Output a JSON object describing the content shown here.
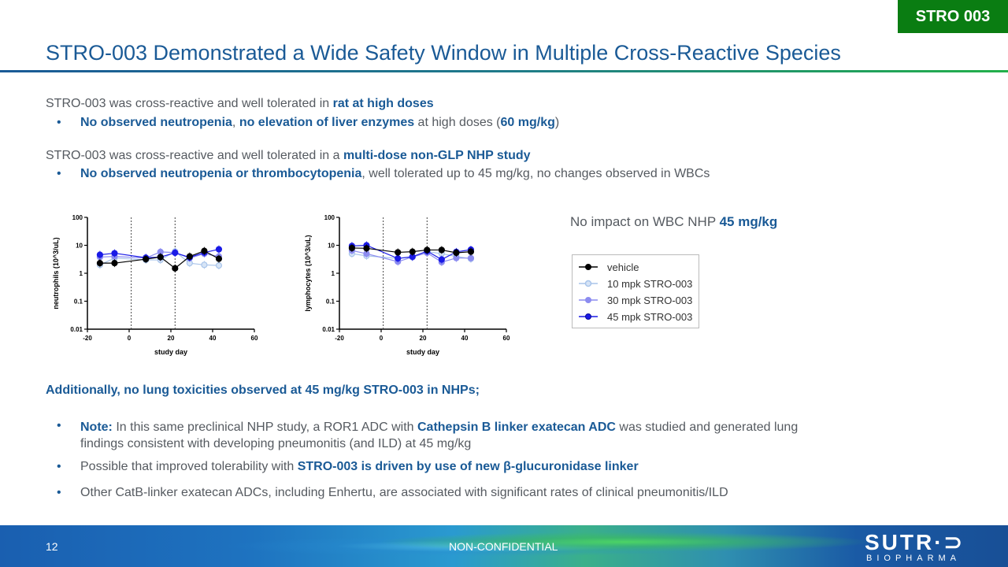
{
  "header": {
    "tag": "STRO 003",
    "title": "STRO-003 Demonstrated a Wide Safety Window in Multiple Cross-Reactive Species"
  },
  "colors": {
    "title_blue": "#1a5a96",
    "tag_green": "#0a7d12",
    "text_gray": "#555a60"
  },
  "rat_section": {
    "lead_plain": "STRO-003 was cross-reactive and well tolerated in ",
    "lead_bold": "rat at high doses",
    "bullet": {
      "bold1": "No observed neutropenia",
      "plain1": ", ",
      "bold2": "no elevation of liver enzymes",
      "plain2": " at high doses (",
      "bold3": "60 mg/kg",
      "plain3": ")"
    }
  },
  "nhp_section": {
    "lead_plain": "STRO-003 was cross-reactive and well tolerated in a ",
    "lead_bold": "multi-dose non-GLP NHP study",
    "bullet": {
      "bold1": "No observed neutropenia or thrombocytopenia",
      "plain1": ", well tolerated up to 45 mg/kg, no changes observed in WBCs"
    }
  },
  "wbc_caption": {
    "plain": "No impact on WBC NHP ",
    "bold": "45 mg/kg"
  },
  "legend": [
    {
      "label": "vehicle",
      "color": "#000000",
      "fill": "#000000"
    },
    {
      "label": "10 mpk STRO-003",
      "color": "#a8c4ea",
      "fill": "#d6e4f6"
    },
    {
      "label": "30 mpk STRO-003",
      "color": "#8c8cf0",
      "fill": "#8c8cf0"
    },
    {
      "label": "45 mpk STRO-003",
      "color": "#1a1ae6",
      "fill": "#1a1ae6"
    }
  ],
  "chart_data": [
    {
      "type": "line",
      "title": "",
      "xlabel": "study day",
      "ylabel": "neutrophils (10^3/uL)",
      "yscale": "log",
      "xlim": [
        -20,
        60
      ],
      "ylim": [
        0.01,
        100
      ],
      "xticks": [
        "-20",
        "0",
        "20",
        "40",
        "60"
      ],
      "yticks": [
        "0.01",
        "0.1",
        "1",
        "10",
        "100"
      ],
      "vlines": [
        1,
        22
      ],
      "x": [
        -14,
        -7,
        8,
        15,
        22,
        29,
        36,
        43
      ],
      "series": [
        {
          "name": "vehicle",
          "values": [
            2.3,
            2.3,
            3.2,
            3.8,
            1.5,
            4.0,
            6.3,
            3.3
          ]
        },
        {
          "name": "10 mpk STRO-003",
          "values": [
            2.0,
            3.5,
            3.0,
            3.0,
            6.0,
            2.3,
            2.0,
            1.9
          ]
        },
        {
          "name": "30 mpk STRO-003",
          "values": [
            3.8,
            4.0,
            3.5,
            5.8,
            5.5,
            3.5,
            5.0,
            4.0
          ]
        },
        {
          "name": "45 mpk STRO-003",
          "values": [
            4.6,
            5.2,
            3.6,
            3.8,
            5.4,
            3.7,
            5.5,
            7.2
          ]
        }
      ],
      "grid": false
    },
    {
      "type": "line",
      "title": "",
      "xlabel": "study day",
      "ylabel": "lymphocytes (10^3/uL)",
      "yscale": "log",
      "xlim": [
        -20,
        60
      ],
      "ylim": [
        0.01,
        100
      ],
      "xticks": [
        "-20",
        "0",
        "20",
        "40",
        "60"
      ],
      "yticks": [
        "0.01",
        "0.1",
        "1",
        "10",
        "100"
      ],
      "vlines": [
        1,
        22
      ],
      "x": [
        -14,
        -7,
        8,
        15,
        22,
        29,
        36,
        43
      ],
      "series": [
        {
          "name": "vehicle",
          "values": [
            8.0,
            7.8,
            5.6,
            5.9,
            6.8,
            6.8,
            5.4,
            5.9
          ]
        },
        {
          "name": "10 mpk STRO-003",
          "values": [
            5.0,
            4.2,
            3.4,
            3.8,
            6.0,
            5.0,
            4.0,
            3.3
          ]
        },
        {
          "name": "30 mpk STRO-003",
          "values": [
            6.5,
            5.0,
            2.6,
            3.8,
            5.4,
            2.5,
            3.5,
            3.5
          ]
        },
        {
          "name": "45 mpk STRO-003",
          "values": [
            9.5,
            10.0,
            3.4,
            3.9,
            6.2,
            3.1,
            5.8,
            7.0
          ]
        }
      ],
      "grid": false
    }
  ],
  "lung_section": {
    "heading": "Additionally, no lung toxicities observed at 45 mg/kg STRO-003 in NHPs;",
    "bullets": [
      {
        "bold1": "Note:",
        "plain1": " In this same preclinical NHP study, a ROR1 ADC with ",
        "bold2": "Cathepsin B linker exatecan ADC",
        "plain2": " was studied and generated lung",
        "line2": "findings consistent with developing pneumonitis (and ILD) at 45 mg/kg"
      },
      {
        "plain1": "Possible that improved tolerability with ",
        "bold1": "STRO-003 is driven by use of new β-glucuronidase linker"
      },
      {
        "plain1": "Other CatB-linker exatecan ADCs, including Enhertu, are associated with significant rates of clinical pneumonitis/ILD"
      }
    ]
  },
  "footer": {
    "page_number": "12",
    "confidentiality": "NON-CONFIDENTIAL",
    "logo_line1": "SUTR·⊃",
    "logo_line2": "BIOPHARMA"
  }
}
